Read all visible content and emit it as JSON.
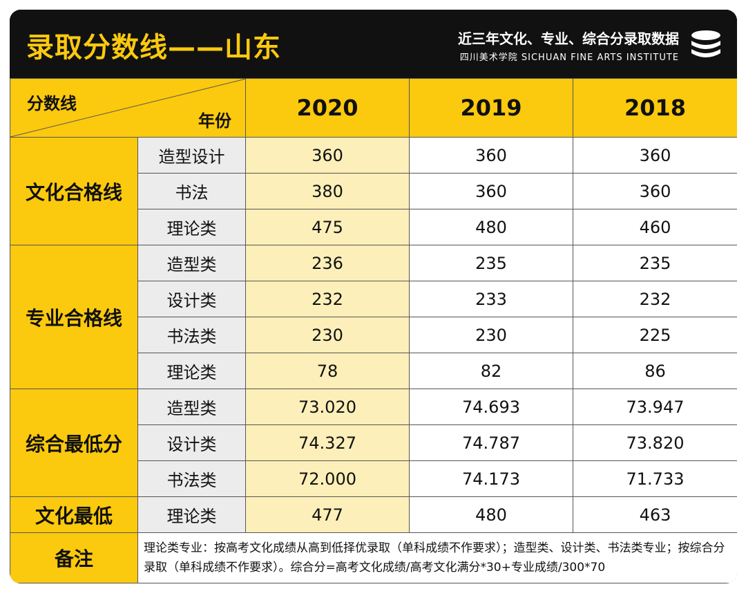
{
  "header": {
    "title": "录取分数线——山东",
    "subtitle": "近三年文化、专业、综合分录取数据",
    "subtitle_en": "四川美术学院 SICHUAN FINE ARTS INSTITUTE",
    "logo_icon": "stacked-discs-icon"
  },
  "colors": {
    "accent": "#fbc90e",
    "dark": "#111111",
    "highlight": "#fdefb9",
    "gray": "#ececec"
  },
  "table": {
    "corner_top": "分数线",
    "corner_bottom": "年份",
    "years": [
      "2020",
      "2019",
      "2018"
    ],
    "groups": [
      {
        "name": "文化合格线",
        "rows": [
          {
            "label": "造型设计",
            "values": [
              "360",
              "360",
              "360"
            ]
          },
          {
            "label": "书法",
            "values": [
              "380",
              "360",
              "360"
            ]
          },
          {
            "label": "理论类",
            "values": [
              "475",
              "480",
              "460"
            ]
          }
        ]
      },
      {
        "name": "专业合格线",
        "rows": [
          {
            "label": "造型类",
            "values": [
              "236",
              "235",
              "235"
            ]
          },
          {
            "label": "设计类",
            "values": [
              "232",
              "233",
              "232"
            ]
          },
          {
            "label": "书法类",
            "values": [
              "230",
              "230",
              "225"
            ]
          },
          {
            "label": "理论类",
            "values": [
              "78",
              "82",
              "86"
            ]
          }
        ]
      },
      {
        "name": "综合最低分",
        "rows": [
          {
            "label": "造型类",
            "values": [
              "73.020",
              "74.693",
              "73.947"
            ]
          },
          {
            "label": "设计类",
            "values": [
              "74.327",
              "74.787",
              "73.820"
            ]
          },
          {
            "label": "书法类",
            "values": [
              "72.000",
              "74.173",
              "71.733"
            ]
          }
        ]
      },
      {
        "name": "文化最低",
        "rows": [
          {
            "label": "理论类",
            "values": [
              "477",
              "480",
              "463"
            ]
          }
        ]
      }
    ],
    "note_label": "备注",
    "note_text": "理论类专业：按高考文化成绩从高到低择优录取（单科成绩不作要求）；造型类、设计类、书法类专业；按综合分录取（单科成绩不作要求）。综合分=高考文化成绩/高考文化满分*30+专业成绩/300*70"
  }
}
